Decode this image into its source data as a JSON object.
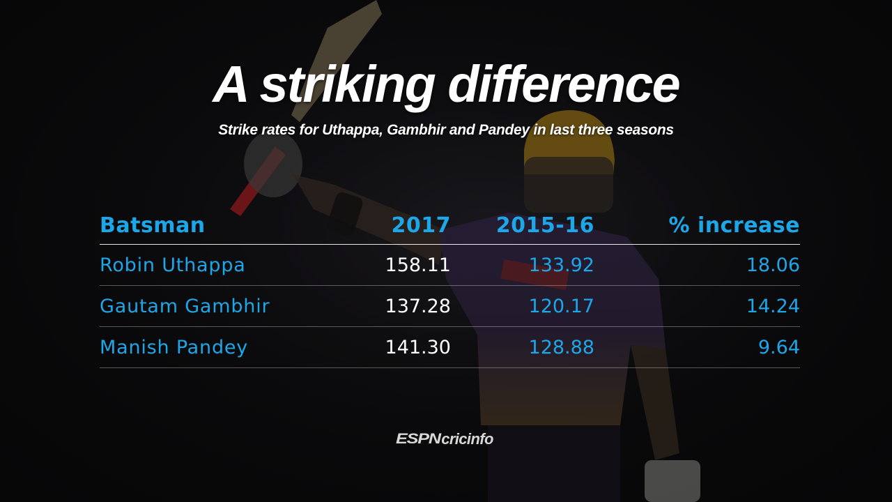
{
  "colors": {
    "accent": "#1ea7e8",
    "text_white": "#ffffff",
    "background": "#0c0c0d"
  },
  "chart_data": {
    "type": "table",
    "title": "A striking difference",
    "subtitle": "Strike rates for Uthappa, Gambhir and Pandey in last three seasons",
    "columns": [
      "Batsman",
      "2017",
      "2015-16",
      "% increase"
    ],
    "rows": [
      {
        "batsman": "Robin Uthappa",
        "y2017": "158.11",
        "y2015_16": "133.92",
        "pct_increase": "18.06"
      },
      {
        "batsman": "Gautam Gambhir",
        "y2017": "137.28",
        "y2015_16": "120.17",
        "pct_increase": "14.24"
      },
      {
        "batsman": "Manish Pandey",
        "y2017": "141.30",
        "y2015_16": "128.88",
        "pct_increase": "9.64"
      }
    ]
  },
  "branding": {
    "espn": "ESPN",
    "cricinfo": "cricinfo"
  }
}
